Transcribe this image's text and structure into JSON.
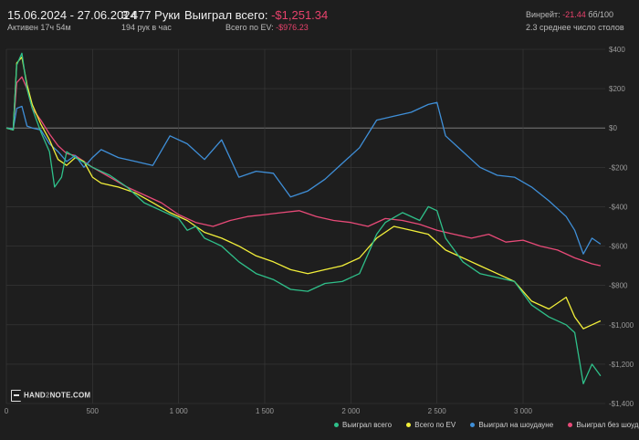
{
  "header": {
    "date_range": "15.06.2024 - 27.06.2024",
    "active": "Активен 17ч 54м",
    "hands": "3 477 Руки",
    "hands_per_hour": "194 рук в час",
    "won_label": "Выиграл всего:",
    "won_value": "-$1,251.34",
    "ev_label": "Всего по EV:",
    "ev_value": "-$976.23",
    "winrate_label": "Винрейт:",
    "winrate_value": "-21.44",
    "winrate_unit": "бб/100",
    "tables": "2.3 среднее число столов"
  },
  "logo": {
    "text_pre": "HAND",
    "text_two": "2",
    "text_post": "NOTE.COM"
  },
  "colors": {
    "background": "#1e1e1e",
    "grid": "#3a3a3a",
    "zero_line": "#7a7a7a",
    "won": "#2fc08a",
    "ev": "#f2ef3a",
    "showdown": "#3f8fd8",
    "nonshowdown": "#e84a78"
  },
  "chart_data": {
    "type": "line",
    "x_ticks": [
      {
        "v": 0,
        "label": "0"
      },
      {
        "v": 500,
        "label": "500"
      },
      {
        "v": 1000,
        "label": "1 000"
      },
      {
        "v": 1500,
        "label": "1 500"
      },
      {
        "v": 2000,
        "label": "2 000"
      },
      {
        "v": 2500,
        "label": "2 500"
      },
      {
        "v": 3000,
        "label": "3 000"
      }
    ],
    "y_ticks": [
      {
        "v": 400,
        "label": "$400"
      },
      {
        "v": 200,
        "label": "$200"
      },
      {
        "v": 0,
        "label": "$0"
      },
      {
        "v": -200,
        "label": "-$200"
      },
      {
        "v": -400,
        "label": "-$400"
      },
      {
        "v": -600,
        "label": "-$600"
      },
      {
        "v": -800,
        "label": "-$800"
      },
      {
        "v": -1000,
        "label": "-$1,000"
      },
      {
        "v": -1200,
        "label": "-$1,200"
      },
      {
        "v": -1400,
        "label": "-$1,400"
      }
    ],
    "xlim": [
      0,
      3477
    ],
    "ylim": [
      -1400,
      400
    ],
    "series": [
      {
        "name": "Выиграл всего",
        "color": "#2fc08a",
        "points": [
          [
            0,
            0
          ],
          [
            40,
            -10
          ],
          [
            60,
            320
          ],
          [
            90,
            380
          ],
          [
            120,
            200
          ],
          [
            150,
            100
          ],
          [
            200,
            -20
          ],
          [
            250,
            -120
          ],
          [
            280,
            -300
          ],
          [
            320,
            -250
          ],
          [
            350,
            -120
          ],
          [
            400,
            -150
          ],
          [
            500,
            -200
          ],
          [
            600,
            -240
          ],
          [
            700,
            -300
          ],
          [
            800,
            -380
          ],
          [
            900,
            -420
          ],
          [
            1000,
            -460
          ],
          [
            1050,
            -520
          ],
          [
            1100,
            -500
          ],
          [
            1150,
            -560
          ],
          [
            1200,
            -580
          ],
          [
            1250,
            -600
          ],
          [
            1350,
            -680
          ],
          [
            1450,
            -740
          ],
          [
            1550,
            -770
          ],
          [
            1650,
            -820
          ],
          [
            1750,
            -830
          ],
          [
            1850,
            -790
          ],
          [
            1950,
            -780
          ],
          [
            2050,
            -740
          ],
          [
            2100,
            -640
          ],
          [
            2150,
            -540
          ],
          [
            2200,
            -480
          ],
          [
            2300,
            -430
          ],
          [
            2400,
            -470
          ],
          [
            2450,
            -400
          ],
          [
            2500,
            -420
          ],
          [
            2550,
            -560
          ],
          [
            2650,
            -680
          ],
          [
            2750,
            -740
          ],
          [
            2850,
            -760
          ],
          [
            2950,
            -780
          ],
          [
            3050,
            -900
          ],
          [
            3150,
            -960
          ],
          [
            3250,
            -1000
          ],
          [
            3300,
            -1040
          ],
          [
            3350,
            -1300
          ],
          [
            3400,
            -1200
          ],
          [
            3450,
            -1260
          ]
        ]
      },
      {
        "name": "Всего по EV",
        "color": "#f2ef3a",
        "points": [
          [
            0,
            0
          ],
          [
            40,
            -10
          ],
          [
            60,
            330
          ],
          [
            90,
            360
          ],
          [
            120,
            220
          ],
          [
            150,
            120
          ],
          [
            200,
            20
          ],
          [
            250,
            -60
          ],
          [
            300,
            -160
          ],
          [
            350,
            -190
          ],
          [
            400,
            -150
          ],
          [
            450,
            -170
          ],
          [
            500,
            -250
          ],
          [
            550,
            -280
          ],
          [
            650,
            -300
          ],
          [
            750,
            -330
          ],
          [
            850,
            -380
          ],
          [
            950,
            -430
          ],
          [
            1050,
            -470
          ],
          [
            1150,
            -530
          ],
          [
            1250,
            -560
          ],
          [
            1350,
            -600
          ],
          [
            1450,
            -650
          ],
          [
            1550,
            -680
          ],
          [
            1650,
            -720
          ],
          [
            1750,
            -740
          ],
          [
            1850,
            -720
          ],
          [
            1950,
            -700
          ],
          [
            2050,
            -660
          ],
          [
            2150,
            -560
          ],
          [
            2250,
            -500
          ],
          [
            2350,
            -520
          ],
          [
            2450,
            -540
          ],
          [
            2550,
            -620
          ],
          [
            2650,
            -660
          ],
          [
            2750,
            -700
          ],
          [
            2850,
            -740
          ],
          [
            2950,
            -780
          ],
          [
            3050,
            -880
          ],
          [
            3150,
            -920
          ],
          [
            3250,
            -860
          ],
          [
            3300,
            -960
          ],
          [
            3350,
            -1020
          ],
          [
            3400,
            -1000
          ],
          [
            3450,
            -980
          ]
        ]
      },
      {
        "name": "Выиграл на шоудауне",
        "color": "#3f8fd8",
        "points": [
          [
            0,
            0
          ],
          [
            40,
            -5
          ],
          [
            60,
            100
          ],
          [
            90,
            110
          ],
          [
            120,
            10
          ],
          [
            150,
            0
          ],
          [
            200,
            -10
          ],
          [
            250,
            -80
          ],
          [
            300,
            -120
          ],
          [
            350,
            -170
          ],
          [
            400,
            -140
          ],
          [
            450,
            -200
          ],
          [
            500,
            -150
          ],
          [
            550,
            -110
          ],
          [
            650,
            -150
          ],
          [
            750,
            -170
          ],
          [
            850,
            -190
          ],
          [
            950,
            -40
          ],
          [
            1050,
            -80
          ],
          [
            1150,
            -160
          ],
          [
            1250,
            -60
          ],
          [
            1350,
            -250
          ],
          [
            1450,
            -220
          ],
          [
            1550,
            -230
          ],
          [
            1650,
            -350
          ],
          [
            1750,
            -320
          ],
          [
            1850,
            -260
          ],
          [
            1950,
            -180
          ],
          [
            2050,
            -100
          ],
          [
            2150,
            40
          ],
          [
            2250,
            60
          ],
          [
            2350,
            80
          ],
          [
            2450,
            120
          ],
          [
            2500,
            130
          ],
          [
            2550,
            -40
          ],
          [
            2650,
            -120
          ],
          [
            2750,
            -200
          ],
          [
            2850,
            -240
          ],
          [
            2950,
            -250
          ],
          [
            3050,
            -300
          ],
          [
            3150,
            -370
          ],
          [
            3250,
            -450
          ],
          [
            3300,
            -520
          ],
          [
            3350,
            -640
          ],
          [
            3400,
            -560
          ],
          [
            3450,
            -590
          ]
        ]
      },
      {
        "name": "Выиграл без шоудауна",
        "color": "#e84a78",
        "points": [
          [
            0,
            0
          ],
          [
            40,
            -5
          ],
          [
            60,
            230
          ],
          [
            90,
            260
          ],
          [
            120,
            200
          ],
          [
            150,
            100
          ],
          [
            200,
            40
          ],
          [
            250,
            -30
          ],
          [
            300,
            -90
          ],
          [
            350,
            -130
          ],
          [
            400,
            -140
          ],
          [
            500,
            -200
          ],
          [
            600,
            -250
          ],
          [
            700,
            -300
          ],
          [
            800,
            -340
          ],
          [
            900,
            -380
          ],
          [
            1000,
            -440
          ],
          [
            1100,
            -480
          ],
          [
            1200,
            -500
          ],
          [
            1300,
            -470
          ],
          [
            1400,
            -450
          ],
          [
            1500,
            -440
          ],
          [
            1600,
            -430
          ],
          [
            1700,
            -420
          ],
          [
            1800,
            -450
          ],
          [
            1900,
            -470
          ],
          [
            2000,
            -480
          ],
          [
            2100,
            -500
          ],
          [
            2200,
            -460
          ],
          [
            2300,
            -470
          ],
          [
            2400,
            -490
          ],
          [
            2500,
            -520
          ],
          [
            2600,
            -540
          ],
          [
            2700,
            -560
          ],
          [
            2800,
            -540
          ],
          [
            2900,
            -580
          ],
          [
            3000,
            -570
          ],
          [
            3100,
            -600
          ],
          [
            3200,
            -620
          ],
          [
            3300,
            -660
          ],
          [
            3400,
            -690
          ],
          [
            3450,
            -700
          ]
        ]
      }
    ]
  }
}
